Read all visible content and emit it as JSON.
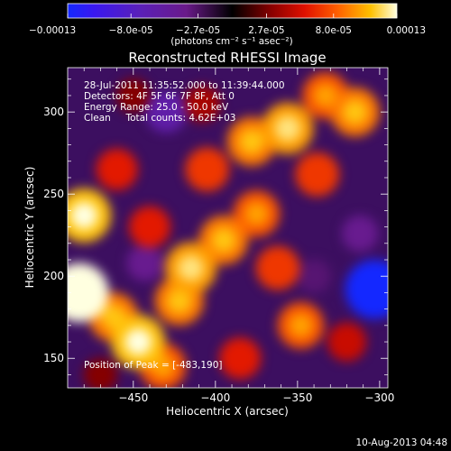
{
  "chart_data": {
    "type": "heatmap",
    "title": "Reconstructed RHESSI Image",
    "xlabel": "Heliocentric X (arcsec)",
    "ylabel": "Heliocentric Y (arcsec)",
    "xlim": [
      -490,
      -295
    ],
    "ylim": [
      132,
      327
    ],
    "x_ticks": [
      -450,
      -400,
      -350,
      -300
    ],
    "y_ticks": [
      150,
      200,
      250,
      300
    ],
    "colorbar": {
      "range": [
        -0.00013,
        0.00013
      ],
      "tick_labels": [
        "-0.00013",
        "-8.0e-05",
        "-2.7e-05",
        "2.7e-05",
        "8.0e-05",
        "0.00013"
      ],
      "unit_label": "(photons cm⁻² s⁻¹ asec⁻²)"
    },
    "annotations": {
      "time_range": "28-Jul-2011 11:35:52.000 to 11:39:44.000",
      "detectors": "Detectors: 4F 5F 6F 7F 8F, Att 0",
      "energy_range": "Energy Range: 25.0 - 50.0 keV",
      "clean_counts": "Clean     Total counts: 4.62E+03",
      "peak": "Position of Peak = [-483,190]"
    },
    "sources": [
      {
        "x": -483,
        "y": 190,
        "value": 0.00013
      },
      {
        "x": -480,
        "y": 237,
        "value": 0.00011
      },
      {
        "x": -462,
        "y": 175,
        "value": 9e-05
      },
      {
        "x": -447,
        "y": 160,
        "value": 0.00011
      },
      {
        "x": -432,
        "y": 145,
        "value": 8e-05
      },
      {
        "x": -422,
        "y": 185,
        "value": 9e-05
      },
      {
        "x": -415,
        "y": 205,
        "value": 0.0001
      },
      {
        "x": -395,
        "y": 222,
        "value": 9e-05
      },
      {
        "x": -440,
        "y": 230,
        "value": 6e-05
      },
      {
        "x": -460,
        "y": 265,
        "value": 6e-05
      },
      {
        "x": -405,
        "y": 265,
        "value": 7e-05
      },
      {
        "x": -375,
        "y": 238,
        "value": 8e-05
      },
      {
        "x": -378,
        "y": 282,
        "value": 9e-05
      },
      {
        "x": -356,
        "y": 290,
        "value": 0.0001
      },
      {
        "x": -333,
        "y": 310,
        "value": 8e-05
      },
      {
        "x": -315,
        "y": 300,
        "value": 9e-05
      },
      {
        "x": -338,
        "y": 262,
        "value": 7e-05
      },
      {
        "x": -362,
        "y": 205,
        "value": 7e-05
      },
      {
        "x": -348,
        "y": 170,
        "value": 8e-05
      },
      {
        "x": -320,
        "y": 160,
        "value": 5e-05
      },
      {
        "x": -385,
        "y": 150,
        "value": 6e-05
      },
      {
        "x": -408,
        "y": 305,
        "value": 4e-05
      },
      {
        "x": -450,
        "y": 310,
        "value": 3e-05
      },
      {
        "x": -470,
        "y": 140,
        "value": 3e-05
      },
      {
        "x": -430,
        "y": 300,
        "value": -6e-05
      },
      {
        "x": -443,
        "y": 208,
        "value": -4e-05
      },
      {
        "x": -303,
        "y": 192,
        "value": -0.00013
      },
      {
        "x": -312,
        "y": 226,
        "value": -4e-05
      },
      {
        "x": -340,
        "y": 200,
        "value": -3e-05
      }
    ]
  },
  "footer": {
    "timestamp": "10-Aug-2013 04:48"
  }
}
